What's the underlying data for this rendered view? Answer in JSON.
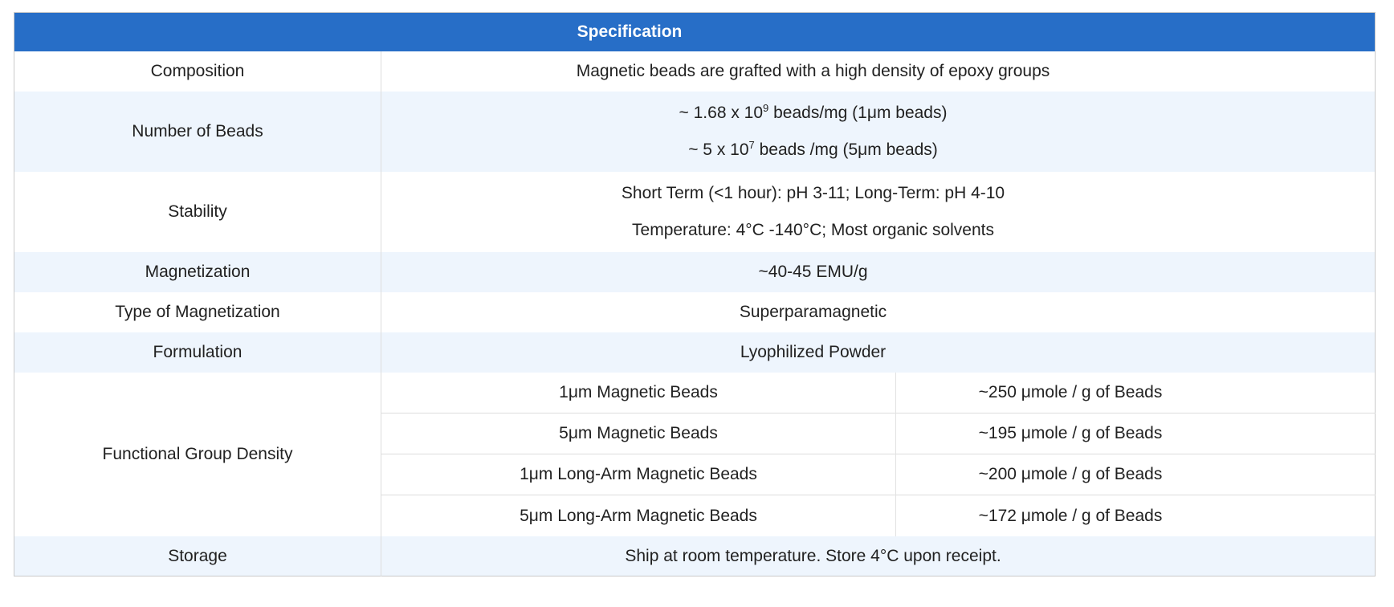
{
  "table": {
    "title": "Specification",
    "colors": {
      "header_bg": "#276EC7",
      "header_text": "#FFFFFF",
      "shaded_row_bg": "#EEF5FD",
      "text": "#212121",
      "outer_border": "#C9C9C9",
      "inner_border": "#DDDDDD",
      "sub_divider": "#E2E2E2"
    },
    "rows": [
      {
        "label": "Composition",
        "value": "Magnetic beads are grafted with a high density of epoxy groups"
      },
      {
        "label": "Number of Beads",
        "lines": [
          [
            {
              "t": "~ 1.68 x 10"
            },
            {
              "sup": "9"
            },
            {
              "t": " beads/mg (1μm beads)"
            }
          ],
          [
            {
              "t": "~ 5 x 10"
            },
            {
              "sup": "7"
            },
            {
              "t": " beads /mg (5μm beads)"
            }
          ]
        ]
      },
      {
        "label": "Stability",
        "lines": [
          "Short Term (<1 hour): pH 3-11; Long-Term: pH 4-10",
          "Temperature: 4°C -140°C; Most organic solvents"
        ]
      },
      {
        "label": "Magnetization",
        "value": "~40-45 EMU/g"
      },
      {
        "label": "Type of Magnetization",
        "value": "Superparamagnetic"
      },
      {
        "label": "Formulation",
        "value": "Lyophilized Powder"
      },
      {
        "label": "Functional Group Density",
        "subrows": [
          {
            "type": "1μm Magnetic Beads",
            "density": "~250 μmole / g of Beads"
          },
          {
            "type": "5μm Magnetic Beads",
            "density": "~195 μmole / g of Beads"
          },
          {
            "type": "1μm Long-Arm Magnetic Beads",
            "density": "~200 μmole / g of Beads"
          },
          {
            "type": "5μm Long-Arm Magnetic Beads",
            "density": "~172 μmole / g of Beads"
          }
        ]
      },
      {
        "label": "Storage",
        "value": "Ship at room temperature. Store 4°C upon receipt."
      }
    ]
  }
}
